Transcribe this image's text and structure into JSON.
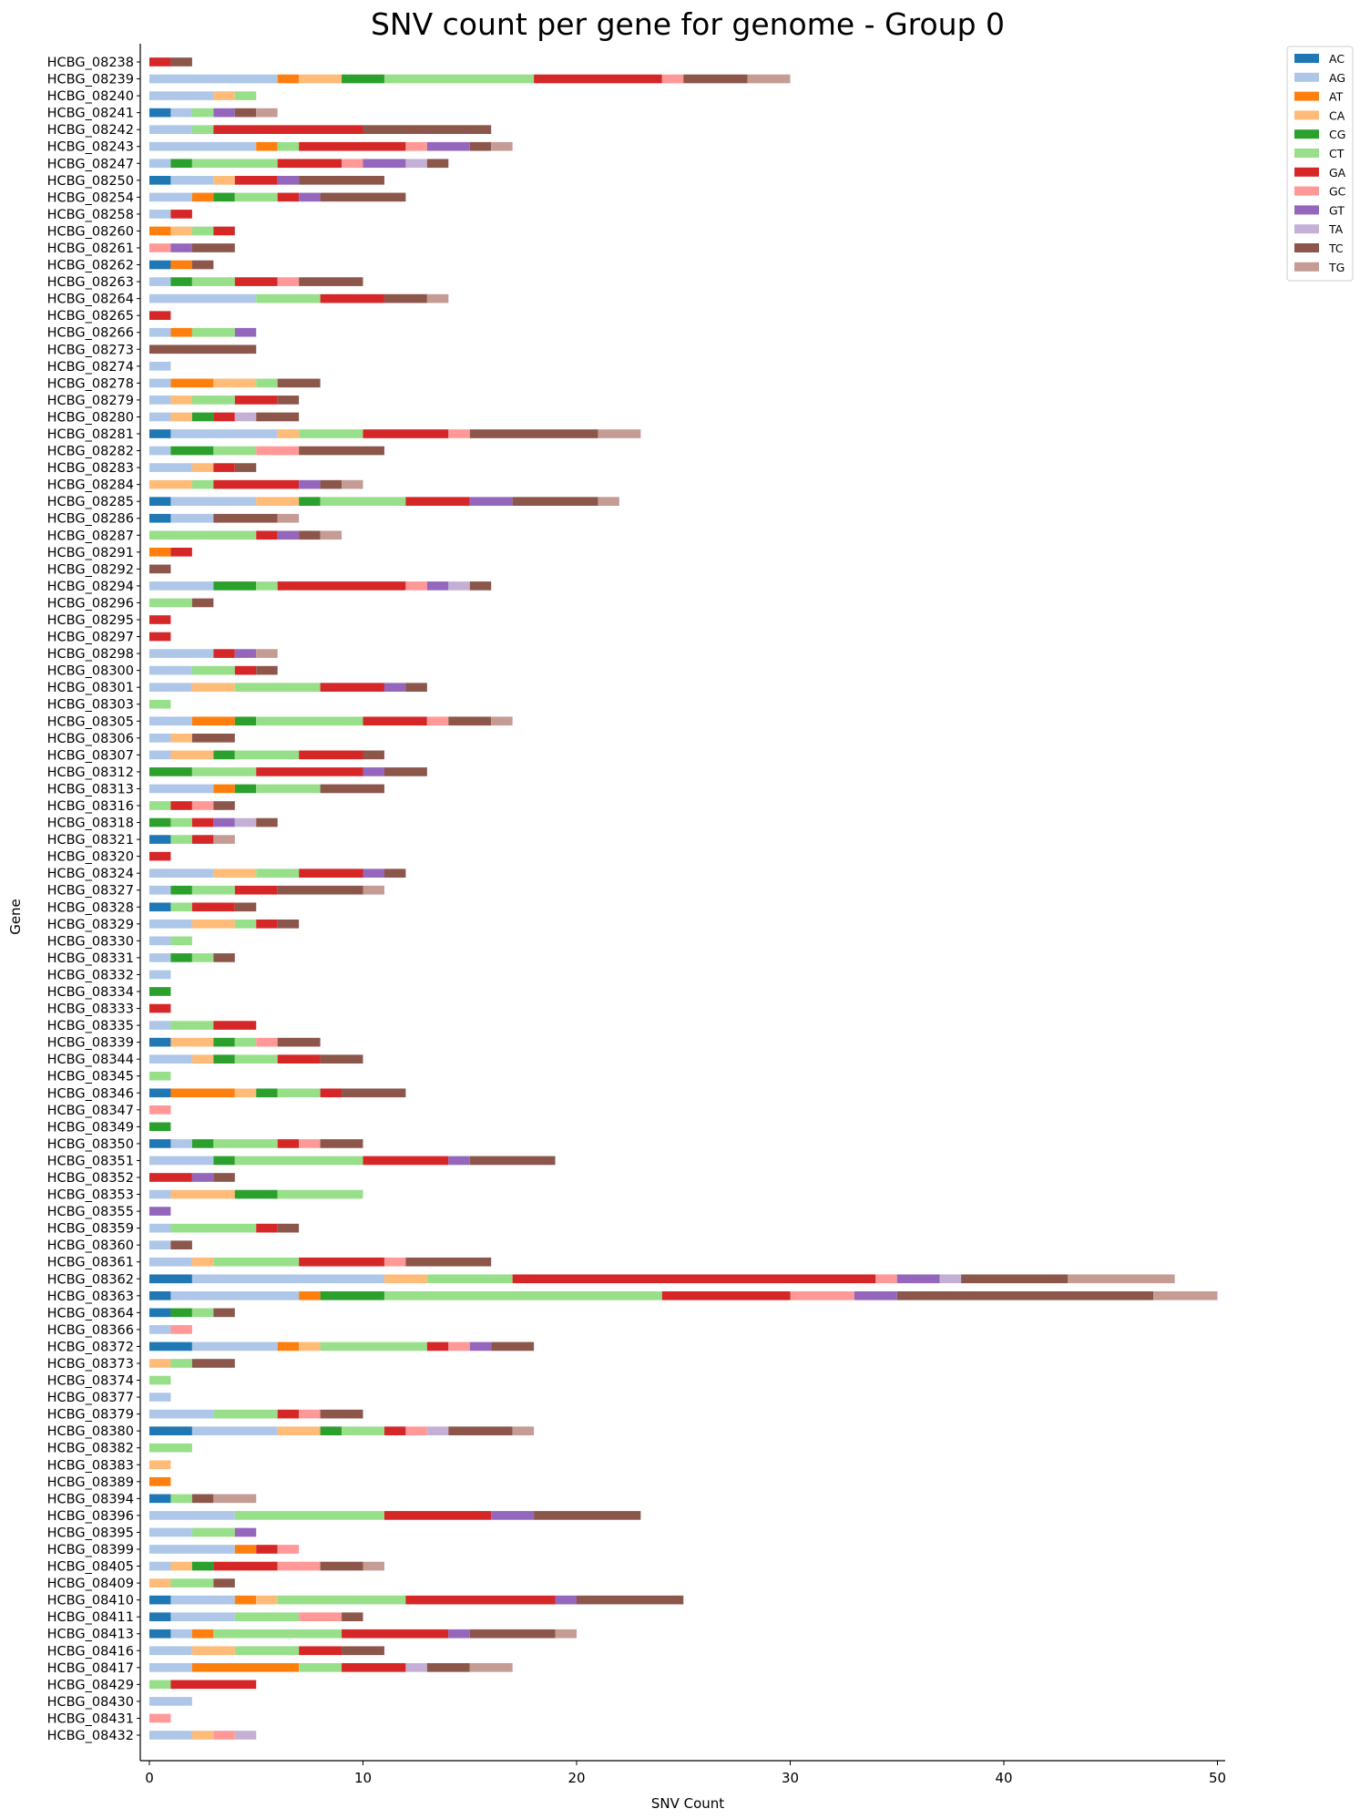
{
  "chart_data": {
    "type": "bar",
    "orientation": "horizontal",
    "stacked": true,
    "title": "SNV count per gene for genome - Group 0",
    "xlabel": "SNV Count",
    "ylabel": "Gene",
    "xlim": [
      0,
      50
    ],
    "xticks": [
      0,
      10,
      20,
      30,
      40,
      50
    ],
    "grid": false,
    "legend_position": "outside-top-right",
    "series": [
      {
        "name": "AC",
        "color": "#1f77b4"
      },
      {
        "name": "AG",
        "color": "#aec7e8"
      },
      {
        "name": "AT",
        "color": "#ff7f0e"
      },
      {
        "name": "CA",
        "color": "#ffbb78"
      },
      {
        "name": "CG",
        "color": "#2ca02c"
      },
      {
        "name": "CT",
        "color": "#98df8a"
      },
      {
        "name": "GA",
        "color": "#d62728"
      },
      {
        "name": "GC",
        "color": "#ff9896"
      },
      {
        "name": "GT",
        "color": "#9467bd"
      },
      {
        "name": "TA",
        "color": "#c5b0d5"
      },
      {
        "name": "TC",
        "color": "#8c564b"
      },
      {
        "name": "TG",
        "color": "#c49c94"
      }
    ],
    "series_order": [
      "AC",
      "AG",
      "AT",
      "CA",
      "CG",
      "CT",
      "GA",
      "GC",
      "GT",
      "TA",
      "TC",
      "TG"
    ],
    "genes": [
      {
        "name": "HCBG_08238",
        "counts": {
          "GA": 1,
          "TC": 1
        }
      },
      {
        "name": "HCBG_08239",
        "counts": {
          "AG": 6,
          "AT": 1,
          "CA": 2,
          "CG": 2,
          "CT": 7,
          "GA": 6,
          "GC": 1,
          "TC": 3,
          "TG": 2
        }
      },
      {
        "name": "HCBG_08240",
        "counts": {
          "AG": 3,
          "CA": 1,
          "CT": 1
        }
      },
      {
        "name": "HCBG_08241",
        "counts": {
          "AC": 1,
          "AG": 1,
          "CT": 1,
          "GT": 1,
          "TC": 1,
          "TG": 1
        }
      },
      {
        "name": "HCBG_08242",
        "counts": {
          "AG": 2,
          "CT": 1,
          "GA": 7,
          "TC": 6
        }
      },
      {
        "name": "HCBG_08243",
        "counts": {
          "AG": 5,
          "AT": 1,
          "CT": 1,
          "GA": 5,
          "GC": 1,
          "GT": 2,
          "TC": 1,
          "TG": 1
        }
      },
      {
        "name": "HCBG_08247",
        "counts": {
          "AG": 1,
          "CG": 1,
          "CT": 4,
          "GA": 3,
          "GC": 1,
          "GT": 2,
          "TA": 1,
          "TC": 1
        }
      },
      {
        "name": "HCBG_08250",
        "counts": {
          "AC": 1,
          "AG": 2,
          "CA": 1,
          "GA": 2,
          "GT": 1,
          "TC": 4
        }
      },
      {
        "name": "HCBG_08254",
        "counts": {
          "AG": 2,
          "AT": 1,
          "CG": 1,
          "CT": 2,
          "GA": 1,
          "GT": 1,
          "TC": 4
        }
      },
      {
        "name": "HCBG_08258",
        "counts": {
          "AG": 1,
          "GA": 1
        }
      },
      {
        "name": "HCBG_08260",
        "counts": {
          "AT": 1,
          "CA": 1,
          "CT": 1,
          "GA": 1
        }
      },
      {
        "name": "HCBG_08261",
        "counts": {
          "GC": 1,
          "GT": 1,
          "TC": 2
        }
      },
      {
        "name": "HCBG_08262",
        "counts": {
          "AC": 1,
          "AT": 1,
          "TC": 1
        }
      },
      {
        "name": "HCBG_08263",
        "counts": {
          "AG": 1,
          "CG": 1,
          "CT": 2,
          "GA": 2,
          "GC": 1,
          "TC": 3
        }
      },
      {
        "name": "HCBG_08264",
        "counts": {
          "AG": 5,
          "CT": 3,
          "GA": 3,
          "TC": 2,
          "TG": 1
        }
      },
      {
        "name": "HCBG_08265",
        "counts": {
          "GA": 1
        }
      },
      {
        "name": "HCBG_08266",
        "counts": {
          "AG": 1,
          "AT": 1,
          "CT": 2,
          "GT": 1
        }
      },
      {
        "name": "HCBG_08273",
        "counts": {
          "TC": 5
        }
      },
      {
        "name": "HCBG_08274",
        "counts": {
          "AG": 1
        }
      },
      {
        "name": "HCBG_08278",
        "counts": {
          "AG": 1,
          "AT": 2,
          "CA": 2,
          "CT": 1,
          "TC": 2
        }
      },
      {
        "name": "HCBG_08279",
        "counts": {
          "AG": 1,
          "CA": 1,
          "CT": 2,
          "GA": 2,
          "TC": 1
        }
      },
      {
        "name": "HCBG_08280",
        "counts": {
          "AG": 1,
          "CA": 1,
          "CG": 1,
          "GA": 1,
          "TA": 1,
          "TC": 2
        }
      },
      {
        "name": "HCBG_08281",
        "counts": {
          "AC": 1,
          "AG": 5,
          "CA": 1,
          "CT": 3,
          "GA": 4,
          "GC": 1,
          "TC": 6,
          "TG": 2
        }
      },
      {
        "name": "HCBG_08282",
        "counts": {
          "AG": 1,
          "CG": 2,
          "CT": 2,
          "GC": 2,
          "TC": 4
        }
      },
      {
        "name": "HCBG_08283",
        "counts": {
          "AG": 2,
          "CA": 1,
          "GA": 1,
          "TC": 1
        }
      },
      {
        "name": "HCBG_08284",
        "counts": {
          "CA": 2,
          "CT": 1,
          "GA": 4,
          "GT": 1,
          "TC": 1,
          "TG": 1
        }
      },
      {
        "name": "HCBG_08285",
        "counts": {
          "AC": 1,
          "AG": 4,
          "CA": 2,
          "CG": 1,
          "CT": 4,
          "GA": 3,
          "GT": 2,
          "TC": 4,
          "TG": 1
        }
      },
      {
        "name": "HCBG_08286",
        "counts": {
          "AC": 1,
          "AG": 2,
          "TC": 3,
          "TG": 1
        }
      },
      {
        "name": "HCBG_08287",
        "counts": {
          "CT": 5,
          "GA": 1,
          "GT": 1,
          "TC": 1,
          "TG": 1
        }
      },
      {
        "name": "HCBG_08291",
        "counts": {
          "AT": 1,
          "GA": 1
        }
      },
      {
        "name": "HCBG_08292",
        "counts": {
          "TC": 1
        }
      },
      {
        "name": "HCBG_08294",
        "counts": {
          "AG": 3,
          "CG": 2,
          "CT": 1,
          "GA": 6,
          "GC": 1,
          "GT": 1,
          "TA": 1,
          "TC": 1
        }
      },
      {
        "name": "HCBG_08296",
        "counts": {
          "CT": 2,
          "TC": 1
        }
      },
      {
        "name": "HCBG_08295",
        "counts": {
          "GA": 1
        }
      },
      {
        "name": "HCBG_08297",
        "counts": {
          "GA": 1
        }
      },
      {
        "name": "HCBG_08298",
        "counts": {
          "AG": 3,
          "GA": 1,
          "GT": 1,
          "TG": 1
        }
      },
      {
        "name": "HCBG_08300",
        "counts": {
          "AG": 2,
          "CT": 2,
          "GA": 1,
          "TC": 1
        }
      },
      {
        "name": "HCBG_08301",
        "counts": {
          "AG": 2,
          "CA": 2,
          "CT": 4,
          "GA": 3,
          "GT": 1,
          "TC": 1
        }
      },
      {
        "name": "HCBG_08303",
        "counts": {
          "CT": 1
        }
      },
      {
        "name": "HCBG_08305",
        "counts": {
          "AG": 2,
          "AT": 2,
          "CG": 1,
          "CT": 5,
          "GA": 3,
          "GC": 1,
          "TC": 2,
          "TG": 1
        }
      },
      {
        "name": "HCBG_08306",
        "counts": {
          "AG": 1,
          "CA": 1,
          "TC": 2
        }
      },
      {
        "name": "HCBG_08307",
        "counts": {
          "AG": 1,
          "CA": 2,
          "CG": 1,
          "CT": 3,
          "GA": 3,
          "TC": 1
        }
      },
      {
        "name": "HCBG_08312",
        "counts": {
          "CG": 2,
          "CT": 3,
          "GA": 5,
          "GT": 1,
          "TC": 2
        }
      },
      {
        "name": "HCBG_08313",
        "counts": {
          "AG": 3,
          "AT": 1,
          "CG": 1,
          "CT": 3,
          "TC": 3
        }
      },
      {
        "name": "HCBG_08316",
        "counts": {
          "CT": 1,
          "GA": 1,
          "GC": 1,
          "TC": 1
        }
      },
      {
        "name": "HCBG_08318",
        "counts": {
          "CG": 1,
          "CT": 1,
          "GA": 1,
          "GT": 1,
          "TA": 1,
          "TC": 1
        }
      },
      {
        "name": "HCBG_08321",
        "counts": {
          "AC": 1,
          "CT": 1,
          "GA": 1,
          "TG": 1
        }
      },
      {
        "name": "HCBG_08320",
        "counts": {
          "GA": 1
        }
      },
      {
        "name": "HCBG_08324",
        "counts": {
          "AG": 3,
          "CA": 2,
          "CT": 2,
          "GA": 3,
          "GT": 1,
          "TC": 1
        }
      },
      {
        "name": "HCBG_08327",
        "counts": {
          "AG": 1,
          "CG": 1,
          "CT": 2,
          "GA": 2,
          "TC": 4,
          "TG": 1
        }
      },
      {
        "name": "HCBG_08328",
        "counts": {
          "AC": 1,
          "CT": 1,
          "GA": 2,
          "TC": 1
        }
      },
      {
        "name": "HCBG_08329",
        "counts": {
          "AG": 2,
          "CA": 2,
          "CT": 1,
          "GA": 1,
          "TC": 1
        }
      },
      {
        "name": "HCBG_08330",
        "counts": {
          "AG": 1,
          "CT": 1
        }
      },
      {
        "name": "HCBG_08331",
        "counts": {
          "AG": 1,
          "CG": 1,
          "CT": 1,
          "TC": 1
        }
      },
      {
        "name": "HCBG_08332",
        "counts": {
          "AG": 1
        }
      },
      {
        "name": "HCBG_08334",
        "counts": {
          "CG": 1
        }
      },
      {
        "name": "HCBG_08333",
        "counts": {
          "GA": 1
        }
      },
      {
        "name": "HCBG_08335",
        "counts": {
          "AG": 1,
          "CT": 2,
          "GA": 2
        }
      },
      {
        "name": "HCBG_08339",
        "counts": {
          "AC": 1,
          "CA": 2,
          "CG": 1,
          "CT": 1,
          "GC": 1,
          "TC": 2
        }
      },
      {
        "name": "HCBG_08344",
        "counts": {
          "AG": 2,
          "CA": 1,
          "CG": 1,
          "CT": 2,
          "GA": 2,
          "TC": 2
        }
      },
      {
        "name": "HCBG_08345",
        "counts": {
          "CT": 1
        }
      },
      {
        "name": "HCBG_08346",
        "counts": {
          "AC": 1,
          "AT": 3,
          "CA": 1,
          "CG": 1,
          "CT": 2,
          "GA": 1,
          "TC": 3
        }
      },
      {
        "name": "HCBG_08347",
        "counts": {
          "GC": 1
        }
      },
      {
        "name": "HCBG_08349",
        "counts": {
          "CG": 1
        }
      },
      {
        "name": "HCBG_08350",
        "counts": {
          "AC": 1,
          "AG": 1,
          "CG": 1,
          "CT": 3,
          "GA": 1,
          "GC": 1,
          "TC": 2
        }
      },
      {
        "name": "HCBG_08351",
        "counts": {
          "AG": 3,
          "CG": 1,
          "CT": 6,
          "GA": 4,
          "GT": 1,
          "TC": 4
        }
      },
      {
        "name": "HCBG_08352",
        "counts": {
          "GA": 2,
          "GT": 1,
          "TC": 1
        }
      },
      {
        "name": "HCBG_08353",
        "counts": {
          "AG": 1,
          "CA": 3,
          "CG": 2,
          "CT": 4
        }
      },
      {
        "name": "HCBG_08355",
        "counts": {
          "GT": 1
        }
      },
      {
        "name": "HCBG_08359",
        "counts": {
          "AG": 1,
          "CT": 4,
          "GA": 1,
          "TC": 1
        }
      },
      {
        "name": "HCBG_08360",
        "counts": {
          "AG": 1,
          "TC": 1
        }
      },
      {
        "name": "HCBG_08361",
        "counts": {
          "AG": 2,
          "CA": 1,
          "CT": 4,
          "GA": 4,
          "GC": 1,
          "TC": 4
        }
      },
      {
        "name": "HCBG_08362",
        "counts": {
          "AC": 2,
          "AG": 9,
          "CA": 2,
          "CT": 4,
          "GA": 17,
          "GC": 1,
          "GT": 2,
          "TA": 1,
          "TC": 5,
          "TG": 5
        }
      },
      {
        "name": "HCBG_08363",
        "counts": {
          "AC": 1,
          "AG": 6,
          "AT": 1,
          "CG": 3,
          "CT": 13,
          "GA": 6,
          "GC": 3,
          "GT": 2,
          "TC": 12,
          "TG": 3
        }
      },
      {
        "name": "HCBG_08364",
        "counts": {
          "AC": 1,
          "CG": 1,
          "CT": 1,
          "TC": 1
        }
      },
      {
        "name": "HCBG_08366",
        "counts": {
          "AG": 1,
          "GC": 1
        }
      },
      {
        "name": "HCBG_08372",
        "counts": {
          "AC": 2,
          "AG": 4,
          "AT": 1,
          "CA": 1,
          "CT": 5,
          "GA": 1,
          "GC": 1,
          "GT": 1,
          "TC": 2
        }
      },
      {
        "name": "HCBG_08373",
        "counts": {
          "CA": 1,
          "CT": 1,
          "TC": 2
        }
      },
      {
        "name": "HCBG_08374",
        "counts": {
          "CT": 1
        }
      },
      {
        "name": "HCBG_08377",
        "counts": {
          "AG": 1
        }
      },
      {
        "name": "HCBG_08379",
        "counts": {
          "AG": 3,
          "CT": 3,
          "GA": 1,
          "GC": 1,
          "TC": 2
        }
      },
      {
        "name": "HCBG_08380",
        "counts": {
          "AC": 2,
          "AG": 4,
          "CA": 2,
          "CG": 1,
          "CT": 2,
          "GA": 1,
          "GC": 1,
          "TA": 1,
          "TC": 3,
          "TG": 1
        }
      },
      {
        "name": "HCBG_08382",
        "counts": {
          "CT": 2
        }
      },
      {
        "name": "HCBG_08383",
        "counts": {
          "CA": 1
        }
      },
      {
        "name": "HCBG_08389",
        "counts": {
          "AT": 1
        }
      },
      {
        "name": "HCBG_08394",
        "counts": {
          "AC": 1,
          "CT": 1,
          "TC": 1,
          "TG": 2
        }
      },
      {
        "name": "HCBG_08396",
        "counts": {
          "AG": 4,
          "CT": 7,
          "GA": 5,
          "GT": 2,
          "TC": 5
        }
      },
      {
        "name": "HCBG_08395",
        "counts": {
          "AG": 2,
          "CT": 2,
          "GT": 1
        }
      },
      {
        "name": "HCBG_08399",
        "counts": {
          "AG": 4,
          "AT": 1,
          "GA": 1,
          "GC": 1
        }
      },
      {
        "name": "HCBG_08405",
        "counts": {
          "AG": 1,
          "CA": 1,
          "CG": 1,
          "GA": 3,
          "GC": 2,
          "TC": 2,
          "TG": 1
        }
      },
      {
        "name": "HCBG_08409",
        "counts": {
          "CA": 1,
          "CT": 2,
          "TC": 1
        }
      },
      {
        "name": "HCBG_08410",
        "counts": {
          "AC": 1,
          "AG": 3,
          "AT": 1,
          "CA": 1,
          "CT": 6,
          "GA": 7,
          "GT": 1,
          "TC": 5
        }
      },
      {
        "name": "HCBG_08411",
        "counts": {
          "AC": 1,
          "AG": 3,
          "CT": 3,
          "GC": 2,
          "TC": 1
        }
      },
      {
        "name": "HCBG_08413",
        "counts": {
          "AC": 1,
          "AG": 1,
          "AT": 1,
          "CT": 6,
          "GA": 5,
          "GT": 1,
          "TC": 4,
          "TG": 1
        }
      },
      {
        "name": "HCBG_08416",
        "counts": {
          "AG": 2,
          "CA": 2,
          "CT": 3,
          "GA": 2,
          "TC": 2
        }
      },
      {
        "name": "HCBG_08417",
        "counts": {
          "AG": 2,
          "AT": 5,
          "CT": 2,
          "GA": 3,
          "TA": 1,
          "TC": 2,
          "TG": 2
        }
      },
      {
        "name": "HCBG_08429",
        "counts": {
          "CT": 1,
          "GA": 4
        }
      },
      {
        "name": "HCBG_08430",
        "counts": {
          "AG": 2
        }
      },
      {
        "name": "HCBG_08431",
        "counts": {
          "GC": 1
        }
      },
      {
        "name": "HCBG_08432",
        "counts": {
          "AG": 2,
          "CA": 1,
          "GC": 1,
          "TA": 1
        }
      }
    ]
  }
}
